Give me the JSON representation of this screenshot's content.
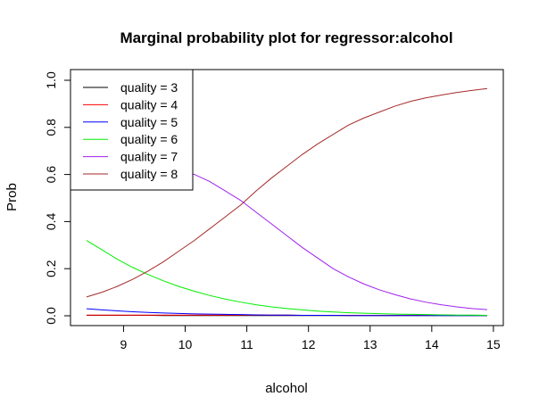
{
  "chart_data": {
    "type": "line",
    "title": "Marginal probability plot for regressor:alcohol",
    "xlabel": "alcohol",
    "ylabel": "Prob",
    "xlim": [
      8.4,
      14.9
    ],
    "ylim": [
      0,
      1
    ],
    "x_ticks": [
      "9",
      "10",
      "11",
      "12",
      "13",
      "14",
      "15"
    ],
    "y_ticks": [
      "0.0",
      "0.2",
      "0.4",
      "0.6",
      "0.8",
      "1.0"
    ],
    "grid": false,
    "legend_position": "top-left",
    "x": [
      8.4,
      8.65,
      8.9,
      9.15,
      9.4,
      9.65,
      9.9,
      10.15,
      10.4,
      10.65,
      10.9,
      11.15,
      11.4,
      11.65,
      11.9,
      12.15,
      12.4,
      12.65,
      12.9,
      13.15,
      13.4,
      13.65,
      13.9,
      14.15,
      14.4,
      14.65,
      14.9
    ],
    "series": [
      {
        "name": "quality = 3",
        "color": "#000000",
        "values": [
          0.002,
          0.002,
          0.002,
          0.002,
          0.002,
          0.001,
          0.001,
          0.001,
          0.001,
          0.001,
          0.001,
          0.001,
          0.001,
          0.001,
          0.001,
          0.001,
          0.001,
          0.001,
          0.001,
          0.001,
          0.001,
          0.001,
          0.001,
          0.001,
          0.001,
          0.001,
          0.001
        ]
      },
      {
        "name": "quality = 4",
        "color": "#ff0000",
        "values": [
          0.003,
          0.003,
          0.003,
          0.003,
          0.003,
          0.003,
          0.003,
          0.003,
          0.003,
          0.003,
          0.003,
          0.003,
          0.003,
          0.003,
          0.002,
          0.002,
          0.002,
          0.002,
          0.002,
          0.002,
          0.002,
          0.002,
          0.002,
          0.002,
          0.002,
          0.002,
          0.002
        ]
      },
      {
        "name": "quality = 5",
        "color": "#0000ff",
        "values": [
          0.03,
          0.025,
          0.021,
          0.017,
          0.014,
          0.012,
          0.01,
          0.008,
          0.007,
          0.006,
          0.005,
          0.004,
          0.003,
          0.003,
          0.002,
          0.002,
          0.002,
          0.001,
          0.001,
          0.001,
          0.001,
          0.001,
          0.001,
          0.001,
          0.001,
          0.001,
          0.001
        ]
      },
      {
        "name": "quality = 6",
        "color": "#00ee00",
        "values": [
          0.32,
          0.28,
          0.24,
          0.205,
          0.175,
          0.148,
          0.124,
          0.104,
          0.086,
          0.071,
          0.058,
          0.047,
          0.038,
          0.031,
          0.025,
          0.02,
          0.016,
          0.013,
          0.011,
          0.009,
          0.007,
          0.006,
          0.005,
          0.004,
          0.003,
          0.003,
          0.002
        ]
      },
      {
        "name": "quality = 7",
        "color": "#a020f0",
        "values": [
          0.6,
          0.62,
          0.63,
          0.635,
          0.635,
          0.63,
          0.615,
          0.6,
          0.57,
          0.53,
          0.49,
          0.44,
          0.39,
          0.34,
          0.29,
          0.245,
          0.2,
          0.165,
          0.135,
          0.11,
          0.09,
          0.072,
          0.058,
          0.047,
          0.038,
          0.031,
          0.026
        ]
      },
      {
        "name": "quality = 8",
        "color": "#a52a2a",
        "values": [
          0.08,
          0.1,
          0.125,
          0.155,
          0.19,
          0.23,
          0.275,
          0.32,
          0.37,
          0.42,
          0.47,
          0.53,
          0.585,
          0.635,
          0.685,
          0.73,
          0.77,
          0.81,
          0.84,
          0.865,
          0.89,
          0.91,
          0.925,
          0.937,
          0.948,
          0.957,
          0.965
        ]
      }
    ]
  }
}
